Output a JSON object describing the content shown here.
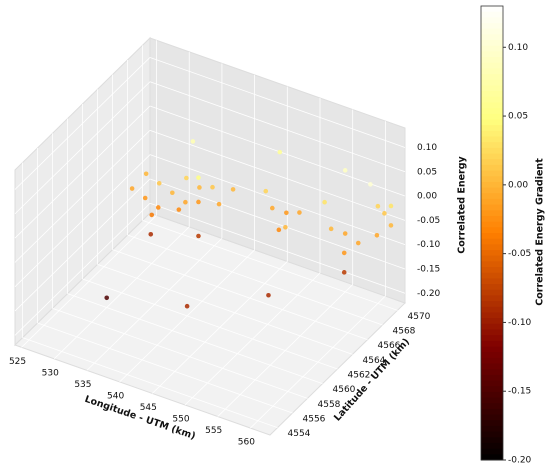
{
  "chart_data": {
    "type": "scatter3d",
    "xlabel": "Longitude - UTM (km)",
    "ylabel": "Latitude - UTM (km)",
    "zlabel": "Correlated Energy",
    "colorbar_label": "Correlated Energy Gradient",
    "colormap": "afmhot",
    "xlim": [
      524,
      563
    ],
    "ylim": [
      4553,
      4571
    ],
    "zlim": [
      -0.22,
      0.14
    ],
    "xticks": [
      525,
      530,
      535,
      540,
      545,
      550,
      555,
      560
    ],
    "yticks": [
      4554,
      4556,
      4558,
      4560,
      4562,
      4564,
      4566,
      4568,
      4570
    ],
    "zticks": [
      {
        "value": 0.1,
        "label": "0.10"
      },
      0.05,
      {
        "value": 0,
        "label": "0.00"
      },
      -0.05,
      {
        "value": -0.1,
        "label": "-0.10"
      },
      -0.15,
      {
        "value": -0.2,
        "label": "-0.20"
      }
    ],
    "clim": [
      -0.2,
      0.13
    ],
    "cticks": [
      {
        "value": 0.1,
        "label": "0.10"
      },
      0.05,
      {
        "value": 0,
        "label": "0.00"
      },
      -0.05,
      {
        "value": -0.1,
        "label": "-0.10"
      },
      -0.15,
      {
        "value": -0.2,
        "label": "-0.20"
      }
    ],
    "x": [
      527,
      528,
      529,
      530,
      531,
      532,
      533,
      534,
      535,
      536,
      537,
      538,
      539,
      530,
      533,
      534,
      536,
      531,
      536,
      530,
      540,
      544,
      545,
      546,
      547,
      548,
      545,
      546,
      549,
      553,
      554,
      555,
      556,
      557,
      555,
      556,
      560,
      561,
      562,
      561,
      562,
      560
    ],
    "y": [
      4566,
      4567,
      4566,
      4567,
      4566,
      4567,
      4568,
      4567,
      4568,
      4567,
      4568,
      4568,
      4569,
      4566,
      4567,
      4568,
      4567,
      4565,
      4567,
      4560,
      4562,
      4569,
      4569,
      4570,
      4569,
      4570,
      4570,
      4569,
      4565,
      4569,
      4569,
      4570,
      4569,
      4570,
      4570,
      4569,
      4570,
      4570,
      4570,
      4569,
      4570,
      4569
    ],
    "z": [
      -0.08,
      -0.06,
      -0.09,
      -0.07,
      -0.1,
      -0.08,
      -0.06,
      -0.09,
      -0.07,
      -0.08,
      -0.06,
      -0.09,
      -0.07,
      -0.12,
      -0.11,
      0.02,
      -0.03,
      -0.14,
      -0.15,
      -0.2,
      -0.2,
      -0.05,
      -0.08,
      -0.1,
      -0.11,
      -0.09,
      0.02,
      -0.12,
      -0.18,
      -0.03,
      -0.08,
      -0.1,
      -0.12,
      -0.11,
      0.03,
      -0.16,
      -0.02,
      -0.03,
      -0.05,
      -0.06,
      -0.01,
      0.04
    ],
    "c": [
      -0.01,
      0,
      -0.02,
      0.01,
      -0.03,
      0,
      0.02,
      -0.01,
      0,
      -0.02,
      0.01,
      -0.01,
      0,
      -0.04,
      -0.03,
      0.08,
      0.05,
      -0.09,
      -0.08,
      -0.15,
      -0.09,
      0.02,
      -0.01,
      -0.02,
      0,
      -0.01,
      0.06,
      -0.03,
      -0.09,
      0.03,
      0,
      -0.01,
      -0.02,
      -0.01,
      0.09,
      -0.08,
      0.02,
      0.01,
      0,
      -0.01,
      0.03,
      0.1
    ]
  }
}
